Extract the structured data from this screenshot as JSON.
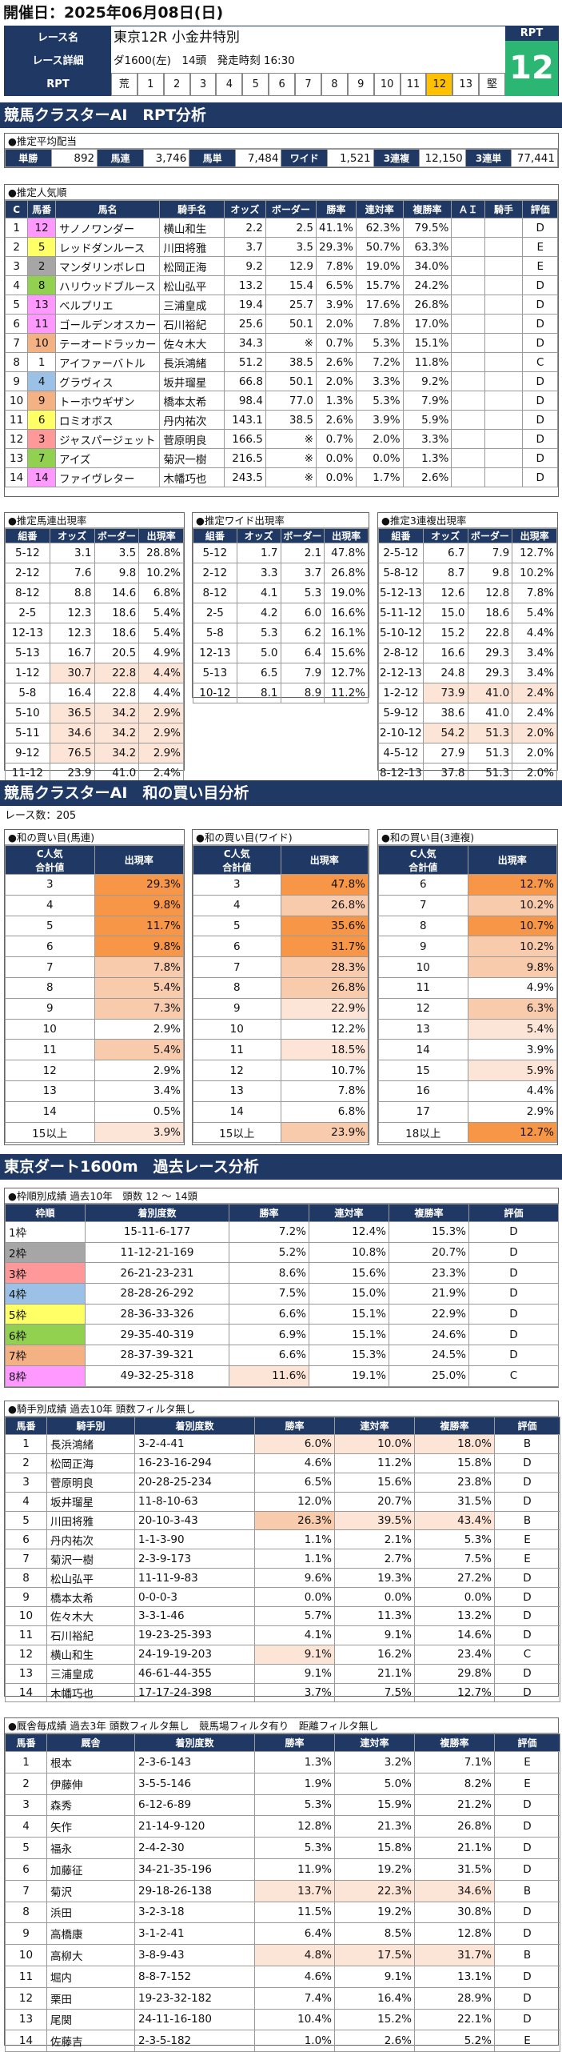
{
  "header": {
    "date_label": "開催日：2025年06月08日(日)",
    "race_name_label": "レース名",
    "race_name": "東京12R 小金井特別",
    "race_detail_label": "レース詳細",
    "race_detail": "ダ1600(左)　14頭　発走時刻 16:30",
    "rpt_label": "RPT",
    "rpt_value": "12",
    "rpt_scale": [
      "荒",
      "1",
      "2",
      "3",
      "4",
      "5",
      "6",
      "7",
      "8",
      "9",
      "10",
      "11",
      "12",
      "13",
      "堅"
    ]
  },
  "analysis": {
    "title": "競馬クラスターAI　RPT分析",
    "avg_title": "●推定平均配当",
    "avg": [
      {
        "label": "単勝",
        "value": "892"
      },
      {
        "label": "馬連",
        "value": "3,746"
      },
      {
        "label": "馬単",
        "value": "7,484"
      },
      {
        "label": "ワイド",
        "value": "1,521"
      },
      {
        "label": "3連複",
        "value": "12,150"
      },
      {
        "label": "3連単",
        "value": "77,441"
      }
    ],
    "pop_title": "●推定人気順",
    "pop_headers": [
      "C",
      "馬番",
      "馬名",
      "騎手名",
      "オッズ",
      "ボーダー",
      "勝率",
      "連対率",
      "複勝率",
      "ＡＩ",
      "騎手",
      "評価"
    ],
    "pop_rows": [
      [
        "1",
        "12",
        "サノノワンダー",
        "横山和生",
        "2.2",
        "2.5",
        "41.1%",
        "62.3%",
        "79.5%",
        "",
        "",
        "D"
      ],
      [
        "2",
        "5",
        "レッドダンルース",
        "川田将雅",
        "3.7",
        "3.5",
        "29.3%",
        "50.7%",
        "63.3%",
        "",
        "",
        "E"
      ],
      [
        "3",
        "2",
        "マンダリンボレロ",
        "松岡正海",
        "9.2",
        "12.9",
        "7.8%",
        "19.0%",
        "34.0%",
        "",
        "",
        "E"
      ],
      [
        "4",
        "8",
        "ハリウッドブルース",
        "松山弘平",
        "13.2",
        "15.4",
        "6.5%",
        "15.7%",
        "24.2%",
        "",
        "",
        "D"
      ],
      [
        "5",
        "13",
        "ベルプリエ",
        "三浦皇成",
        "19.4",
        "25.7",
        "3.9%",
        "17.6%",
        "26.8%",
        "",
        "",
        "D"
      ],
      [
        "6",
        "11",
        "ゴールデンオスカー",
        "石川裕紀",
        "25.6",
        "50.1",
        "2.0%",
        "7.8%",
        "17.0%",
        "",
        "",
        "D"
      ],
      [
        "7",
        "10",
        "テーオードラッカー",
        "佐々木大",
        "34.3",
        "※",
        "0.7%",
        "5.3%",
        "15.1%",
        "",
        "",
        "D"
      ],
      [
        "8",
        "1",
        "アイファーバトル",
        "長浜鴻緒",
        "51.2",
        "38.5",
        "2.6%",
        "7.2%",
        "11.8%",
        "",
        "",
        "C"
      ],
      [
        "9",
        "4",
        "グラヴィス",
        "坂井瑠星",
        "66.8",
        "50.1",
        "2.0%",
        "3.3%",
        "9.2%",
        "",
        "",
        "D"
      ],
      [
        "10",
        "9",
        "トーホウギザン",
        "橋本太希",
        "98.4",
        "77.0",
        "1.3%",
        "5.3%",
        "7.9%",
        "",
        "",
        "D"
      ],
      [
        "11",
        "6",
        "ロミオボス",
        "丹内祐次",
        "143.1",
        "38.5",
        "2.6%",
        "3.9%",
        "5.9%",
        "",
        "",
        "D"
      ],
      [
        "12",
        "3",
        "ジャスパージェット",
        "菅原明良",
        "166.5",
        "※",
        "0.7%",
        "2.0%",
        "3.3%",
        "",
        "",
        "D"
      ],
      [
        "13",
        "7",
        "アイズ",
        "菊沢一樹",
        "216.5",
        "※",
        "0.0%",
        "0.0%",
        "1.3%",
        "",
        "",
        "D"
      ],
      [
        "14",
        "14",
        "ファイヴレター",
        "木幡巧也",
        "243.5",
        "※",
        "0.0%",
        "1.7%",
        "2.6%",
        "",
        "",
        "D"
      ]
    ],
    "umaren_title": "●推定馬連出現率",
    "wide_title": "●推定ワイド出現率",
    "sanren_title": "●推定3連複出現率",
    "mini_headers": [
      "組番",
      "オッズ",
      "ボーダー",
      "出現率"
    ],
    "umaren_rows": [
      [
        "5-12",
        "3.1",
        "3.5",
        "28.8%"
      ],
      [
        "2-12",
        "7.6",
        "9.8",
        "10.2%"
      ],
      [
        "8-12",
        "8.8",
        "14.6",
        "6.8%"
      ],
      [
        "2-5",
        "12.3",
        "18.6",
        "5.4%"
      ],
      [
        "12-13",
        "12.3",
        "18.6",
        "5.4%"
      ],
      [
        "5-13",
        "16.7",
        "20.5",
        "4.9%"
      ],
      [
        "1-12",
        "30.7",
        "22.8",
        "4.4%"
      ],
      [
        "5-8",
        "16.4",
        "22.8",
        "4.4%"
      ],
      [
        "5-10",
        "36.5",
        "34.2",
        "2.9%"
      ],
      [
        "5-11",
        "34.6",
        "34.2",
        "2.9%"
      ],
      [
        "9-12",
        "76.5",
        "34.2",
        "2.9%"
      ],
      [
        "11-12",
        "23.9",
        "41.0",
        "2.4%"
      ]
    ],
    "wide_rows": [
      [
        "5-12",
        "1.7",
        "2.1",
        "47.8%"
      ],
      [
        "2-12",
        "3.3",
        "3.7",
        "26.8%"
      ],
      [
        "8-12",
        "4.1",
        "5.3",
        "19.0%"
      ],
      [
        "2-5",
        "4.2",
        "6.0",
        "16.6%"
      ],
      [
        "5-8",
        "5.3",
        "6.2",
        "16.1%"
      ],
      [
        "12-13",
        "5.0",
        "6.4",
        "15.6%"
      ],
      [
        "5-13",
        "6.5",
        "7.9",
        "12.7%"
      ],
      [
        "10-12",
        "8.1",
        "8.9",
        "11.2%"
      ]
    ],
    "sanren_rows": [
      [
        "2-5-12",
        "6.7",
        "7.9",
        "12.7%"
      ],
      [
        "5-8-12",
        "8.7",
        "9.8",
        "10.2%"
      ],
      [
        "5-12-13",
        "12.6",
        "12.8",
        "7.8%"
      ],
      [
        "5-11-12",
        "15.0",
        "18.6",
        "5.4%"
      ],
      [
        "5-10-12",
        "15.2",
        "22.8",
        "4.4%"
      ],
      [
        "2-8-12",
        "16.6",
        "29.3",
        "3.4%"
      ],
      [
        "2-12-13",
        "24.8",
        "29.3",
        "3.4%"
      ],
      [
        "1-2-12",
        "73.9",
        "41.0",
        "2.4%"
      ],
      [
        "5-9-12",
        "38.6",
        "41.0",
        "2.4%"
      ],
      [
        "2-10-12",
        "54.2",
        "51.3",
        "2.0%"
      ],
      [
        "4-5-12",
        "27.9",
        "51.3",
        "2.0%"
      ],
      [
        "8-12-13",
        "37.8",
        "51.3",
        "2.0%"
      ]
    ]
  },
  "sum": {
    "title": "競馬クラスターAI　和の買い目分析",
    "race_count": "レース数：205",
    "umaren_title": "●和の買い目(馬連)",
    "wide_title": "●和の買い目(ワイド)",
    "sanren_title": "●和の買い目(3連複)",
    "headers": [
      "C人気\n合計値",
      "出現率"
    ],
    "umaren_rows": [
      [
        "3",
        "29.3%"
      ],
      [
        "4",
        "9.8%"
      ],
      [
        "5",
        "11.7%"
      ],
      [
        "6",
        "9.8%"
      ],
      [
        "7",
        "7.8%"
      ],
      [
        "8",
        "5.4%"
      ],
      [
        "9",
        "7.3%"
      ],
      [
        "10",
        "2.9%"
      ],
      [
        "11",
        "5.4%"
      ],
      [
        "12",
        "2.9%"
      ],
      [
        "13",
        "3.4%"
      ],
      [
        "14",
        "0.5%"
      ],
      [
        "15以上",
        "3.9%"
      ]
    ],
    "wide_rows": [
      [
        "3",
        "47.8%"
      ],
      [
        "4",
        "26.8%"
      ],
      [
        "5",
        "35.6%"
      ],
      [
        "6",
        "31.7%"
      ],
      [
        "7",
        "28.3%"
      ],
      [
        "8",
        "26.8%"
      ],
      [
        "9",
        "22.9%"
      ],
      [
        "10",
        "12.2%"
      ],
      [
        "11",
        "18.5%"
      ],
      [
        "12",
        "10.7%"
      ],
      [
        "13",
        "7.8%"
      ],
      [
        "14",
        "6.8%"
      ],
      [
        "15以上",
        "23.9%"
      ]
    ],
    "sanren_rows": [
      [
        "6",
        "12.7%"
      ],
      [
        "7",
        "10.2%"
      ],
      [
        "8",
        "10.7%"
      ],
      [
        "9",
        "10.2%"
      ],
      [
        "10",
        "9.8%"
      ],
      [
        "11",
        "4.9%"
      ],
      [
        "12",
        "6.3%"
      ],
      [
        "13",
        "5.4%"
      ],
      [
        "14",
        "3.9%"
      ],
      [
        "15",
        "5.9%"
      ],
      [
        "16",
        "4.4%"
      ],
      [
        "17",
        "2.9%"
      ],
      [
        "18以上",
        "12.7%"
      ]
    ]
  },
  "past": {
    "title": "東京ダート1600m　過去レース分析",
    "frame_title": "●枠順別成績 過去10年　頭数 12 ～ 14頭",
    "frame_headers": [
      "枠順",
      "着別度数",
      "勝率",
      "連対率",
      "複勝率",
      "評価"
    ],
    "frame_rows": [
      [
        "1枠",
        "15-11-6-177",
        "7.2%",
        "12.4%",
        "15.3%",
        "D"
      ],
      [
        "2枠",
        "11-12-21-169",
        "5.2%",
        "10.8%",
        "20.7%",
        "D"
      ],
      [
        "3枠",
        "26-21-23-231",
        "8.6%",
        "15.6%",
        "23.3%",
        "D"
      ],
      [
        "4枠",
        "28-28-26-292",
        "7.5%",
        "15.0%",
        "21.9%",
        "D"
      ],
      [
        "5枠",
        "28-36-33-326",
        "6.6%",
        "15.1%",
        "22.9%",
        "D"
      ],
      [
        "6枠",
        "29-35-40-319",
        "6.9%",
        "15.1%",
        "24.6%",
        "D"
      ],
      [
        "7枠",
        "28-37-39-321",
        "6.6%",
        "15.3%",
        "24.5%",
        "D"
      ],
      [
        "8枠",
        "49-32-25-318",
        "11.6%",
        "19.1%",
        "25.0%",
        "C"
      ]
    ],
    "frame_colors": [
      "#ffffff",
      "#a6a6a6",
      "#ff9999",
      "#9bc2e6",
      "#ffff66",
      "#92d050",
      "#f4b183",
      "#ff99ff"
    ],
    "jockey_title": "●騎手別成績 過去10年 頭数フィルタ無し",
    "jockey_headers": [
      "馬番",
      "騎手別",
      "着別度数",
      "勝率",
      "連対率",
      "複勝率",
      "評価"
    ],
    "jockey_rows": [
      [
        "1",
        "長浜鴻緒",
        "3-2-4-41",
        "6.0%",
        "10.0%",
        "18.0%",
        "B"
      ],
      [
        "2",
        "松岡正海",
        "16-23-16-294",
        "4.6%",
        "11.2%",
        "15.8%",
        "D"
      ],
      [
        "3",
        "菅原明良",
        "20-28-25-234",
        "6.5%",
        "15.6%",
        "23.8%",
        "D"
      ],
      [
        "4",
        "坂井瑠星",
        "11-8-10-63",
        "12.0%",
        "20.7%",
        "31.5%",
        "D"
      ],
      [
        "5",
        "川田将雅",
        "20-10-3-43",
        "26.3%",
        "39.5%",
        "43.4%",
        "B"
      ],
      [
        "6",
        "丹内祐次",
        "1-1-3-90",
        "1.1%",
        "2.1%",
        "5.3%",
        "E"
      ],
      [
        "7",
        "菊沢一樹",
        "2-3-9-173",
        "1.1%",
        "2.7%",
        "7.5%",
        "E"
      ],
      [
        "8",
        "松山弘平",
        "11-11-9-83",
        "9.6%",
        "19.3%",
        "27.2%",
        "D"
      ],
      [
        "9",
        "橋本太希",
        "0-0-0-3",
        "0.0%",
        "0.0%",
        "0.0%",
        "D"
      ],
      [
        "10",
        "佐々木大",
        "3-3-1-46",
        "5.7%",
        "11.3%",
        "13.2%",
        "D"
      ],
      [
        "11",
        "石川裕紀",
        "19-23-25-393",
        "4.1%",
        "9.1%",
        "14.6%",
        "D"
      ],
      [
        "12",
        "横山和生",
        "24-19-19-203",
        "9.1%",
        "16.2%",
        "23.4%",
        "C"
      ],
      [
        "13",
        "三浦皇成",
        "46-61-44-355",
        "9.1%",
        "21.1%",
        "29.8%",
        "D"
      ],
      [
        "14",
        "木幡巧也",
        "17-17-24-398",
        "3.7%",
        "7.5%",
        "12.7%",
        "D"
      ]
    ],
    "trainer_title": "●厩舎毎成績 過去3年 頭数フィルタ無し　競馬場フィルタ有り　距離フィルタ無し",
    "trainer_headers": [
      "馬番",
      "厩舎",
      "着別度数",
      "勝率",
      "連対率",
      "複勝率",
      "評価"
    ],
    "trainer_rows": [
      [
        "1",
        "根本",
        "2-3-6-143",
        "1.3%",
        "3.2%",
        "7.1%",
        "E"
      ],
      [
        "2",
        "伊藤伸",
        "3-5-5-146",
        "1.9%",
        "5.0%",
        "8.2%",
        "E"
      ],
      [
        "3",
        "森秀",
        "6-12-6-89",
        "5.3%",
        "15.9%",
        "21.2%",
        "D"
      ],
      [
        "4",
        "矢作",
        "21-14-9-120",
        "12.8%",
        "21.3%",
        "26.8%",
        "D"
      ],
      [
        "5",
        "福永",
        "2-4-2-30",
        "5.3%",
        "15.8%",
        "21.1%",
        "D"
      ],
      [
        "6",
        "加藤征",
        "34-21-35-196",
        "11.9%",
        "19.2%",
        "31.5%",
        "D"
      ],
      [
        "7",
        "菊沢",
        "29-18-26-138",
        "13.7%",
        "22.3%",
        "34.6%",
        "B"
      ],
      [
        "8",
        "浜田",
        "3-2-3-18",
        "11.5%",
        "19.2%",
        "30.8%",
        "D"
      ],
      [
        "9",
        "高橋康",
        "3-1-2-41",
        "6.4%",
        "8.5%",
        "12.8%",
        "D"
      ],
      [
        "10",
        "高柳大",
        "3-8-9-43",
        "4.8%",
        "17.5%",
        "31.7%",
        "B"
      ],
      [
        "11",
        "堀内",
        "8-8-7-152",
        "4.6%",
        "9.1%",
        "13.1%",
        "D"
      ],
      [
        "12",
        "栗田",
        "19-23-32-182",
        "7.4%",
        "16.4%",
        "28.9%",
        "D"
      ],
      [
        "13",
        "尾関",
        "24-11-16-180",
        "10.4%",
        "15.2%",
        "22.1%",
        "D"
      ],
      [
        "14",
        "佐藤吉",
        "2-3-5-182",
        "1.0%",
        "2.6%",
        "5.2%",
        "E"
      ]
    ]
  }
}
